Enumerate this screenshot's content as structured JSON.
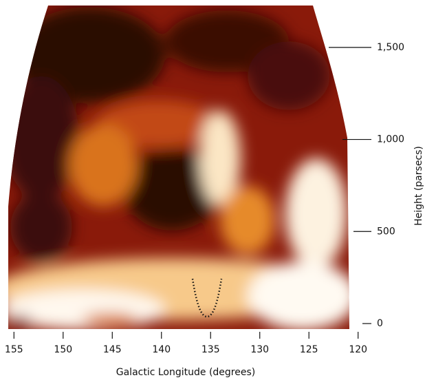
{
  "chart_data": {
    "type": "heatmap-image",
    "x_label": "Galactic Longitude (degrees)",
    "y_label": "Height (parsecs)",
    "xlim": [
      156,
      119
    ],
    "xticks": [
      155,
      150,
      145,
      140,
      135,
      130,
      125,
      120
    ],
    "ylim": [
      0,
      1750
    ],
    "yticks": [
      0,
      500,
      {
        "value": 1000,
        "label": "1,000"
      },
      {
        "value": 1500,
        "label": "1,500"
      }
    ]
  }
}
